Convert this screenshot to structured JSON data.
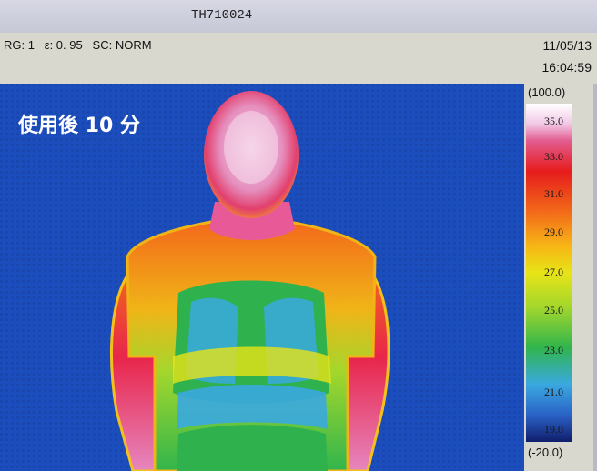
{
  "window": {
    "title": "TH710024"
  },
  "status": {
    "params": "RG: 1   ε: 0. 95   SC: NORM",
    "date": "11/05/13",
    "time": "16:04:59"
  },
  "image": {
    "caption": "使用後 10 分"
  },
  "scale": {
    "max_label": "(100.0)",
    "min_label": "(-20.0)",
    "ticks": [
      "35.0",
      "33.0",
      "31.0",
      "29.0",
      "27.0",
      "25.0",
      "23.0",
      "21.0",
      "19.0"
    ]
  },
  "colors": {
    "background_blue": "#1a48b8",
    "hot_white": "#ffffff",
    "hot_pink": "#e35c8f",
    "red": "#e61c1c",
    "orange": "#f36a1a",
    "yellow": "#e8e417",
    "green": "#31b54c",
    "cyan": "#3aa9e0",
    "dark_blue": "#111d6c"
  }
}
